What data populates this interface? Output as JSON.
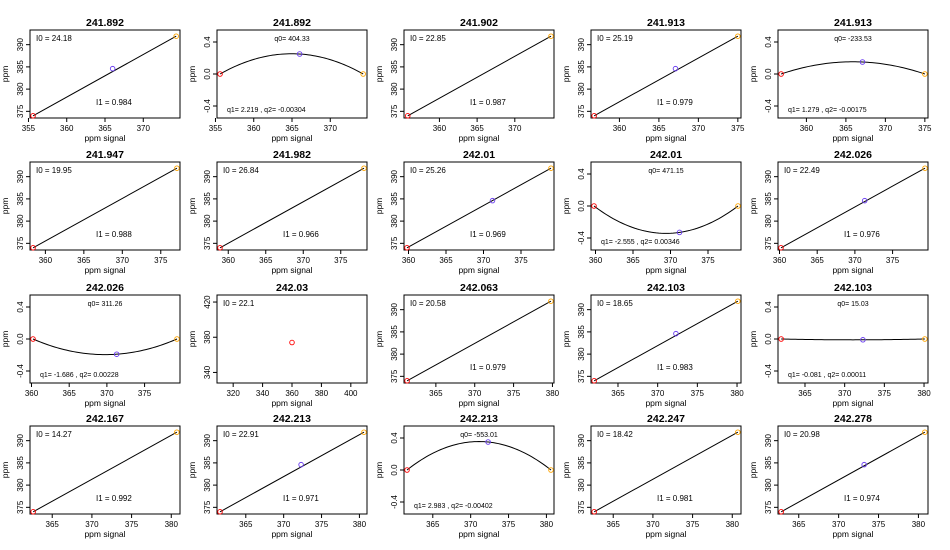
{
  "figure": {
    "y_axis_label": "ppm",
    "x_axis_label": "ppm signal",
    "colors": {
      "first_point": "#ff0000",
      "mid_point": "#6a3df0",
      "last_point": "#ffa500",
      "line": "#000000"
    }
  },
  "chart_data": [
    {
      "title": "241.892",
      "type": "line",
      "kind": "linear",
      "xticks": [
        355,
        360,
        365,
        370
      ],
      "xlim": [
        355.2,
        374.8
      ],
      "yticks": [
        375,
        380,
        385,
        390
      ],
      "ylim": [
        373.5,
        393.3
      ],
      "points": [
        [
          355.6,
          374.0
        ],
        [
          366.0,
          384.6
        ],
        [
          374.3,
          391.9
        ]
      ],
      "ann_top": "I0 = 24.18",
      "ann_bottom": "I1 = 0.984"
    },
    {
      "title": "241.892",
      "type": "line",
      "kind": "quadratic",
      "xticks": [
        355,
        360,
        365,
        370
      ],
      "xlim": [
        355.2,
        374.8
      ],
      "yticks": [
        -0.4,
        0.0,
        0.4
      ],
      "ylim": [
        -0.55,
        0.55
      ],
      "points": [
        [
          355.6,
          0.0
        ],
        [
          366.0,
          0.25
        ],
        [
          374.3,
          0.0
        ]
      ],
      "ann_top": "q0= 404.33",
      "ann_bottom": "q1= 2.219 , q2= -0.00304"
    },
    {
      "title": "241.902",
      "type": "line",
      "kind": "linear",
      "xticks": [
        360,
        365,
        370
      ],
      "xlim": [
        355.3,
        375.2
      ],
      "yticks": [
        375,
        380,
        385,
        390
      ],
      "ylim": [
        373.5,
        393.3
      ],
      "points": [
        [
          355.8,
          374.0
        ],
        [
          374.8,
          391.9
        ]
      ],
      "ann_top": "I0 = 22.85",
      "ann_bottom": "I1 = 0.987"
    },
    {
      "title": "241.913",
      "type": "line",
      "kind": "linear",
      "xticks": [
        360,
        365,
        370,
        375
      ],
      "xlim": [
        356.4,
        375.4
      ],
      "yticks": [
        375,
        380,
        385,
        390
      ],
      "ylim": [
        373.5,
        393.3
      ],
      "points": [
        [
          356.8,
          374.0
        ],
        [
          367.1,
          384.6
        ],
        [
          375.0,
          391.9
        ]
      ],
      "ann_top": "I0 = 25.19",
      "ann_bottom": "I1 = 0.979"
    },
    {
      "title": "241.913",
      "type": "line",
      "kind": "quadratic",
      "xticks": [
        360,
        365,
        370,
        375
      ],
      "xlim": [
        356.4,
        375.4
      ],
      "yticks": [
        -0.4,
        0.0,
        0.4
      ],
      "ylim": [
        -0.55,
        0.55
      ],
      "points": [
        [
          356.8,
          0.0
        ],
        [
          367.1,
          0.15
        ],
        [
          375.0,
          0.0
        ]
      ],
      "ann_top": "q0= -233.53",
      "ann_bottom": "q1= 1.279 , q2= -0.00175"
    },
    {
      "title": "241.947",
      "type": "line",
      "kind": "linear",
      "xticks": [
        360,
        365,
        370,
        375
      ],
      "xlim": [
        358.0,
        377.5
      ],
      "yticks": [
        375,
        380,
        385,
        390
      ],
      "ylim": [
        373.5,
        393.3
      ],
      "points": [
        [
          358.4,
          374.0
        ],
        [
          377.1,
          391.9
        ]
      ],
      "ann_top": "I0 = 19.95",
      "ann_bottom": "I1 = 0.988"
    },
    {
      "title": "241.982",
      "type": "line",
      "kind": "linear",
      "xticks": [
        360,
        365,
        370,
        375
      ],
      "xlim": [
        358.5,
        378.5
      ],
      "yticks": [
        375,
        380,
        385,
        390
      ],
      "ylim": [
        373.5,
        393.3
      ],
      "points": [
        [
          358.9,
          374.0
        ],
        [
          378.1,
          391.9
        ]
      ],
      "ann_top": "I0 = 26.84",
      "ann_bottom": "I1 = 0.966"
    },
    {
      "title": "242.01",
      "type": "line",
      "kind": "linear",
      "xticks": [
        360,
        365,
        370,
        375
      ],
      "xlim": [
        359.4,
        379.4
      ],
      "yticks": [
        375,
        380,
        385,
        390
      ],
      "ylim": [
        373.5,
        393.3
      ],
      "points": [
        [
          359.8,
          374.0
        ],
        [
          371.2,
          384.6
        ],
        [
          379.0,
          391.9
        ]
      ],
      "ann_top": "I0 = 25.26",
      "ann_bottom": "I1 = 0.969"
    },
    {
      "title": "242.01",
      "type": "line",
      "kind": "quadratic",
      "xticks": [
        360,
        365,
        370,
        375
      ],
      "xlim": [
        359.4,
        379.4
      ],
      "yticks": [
        -0.4,
        0.0,
        0.4
      ],
      "ylim": [
        -0.55,
        0.55
      ],
      "points": [
        [
          359.8,
          0.0
        ],
        [
          371.2,
          -0.33
        ],
        [
          379.0,
          0.0
        ]
      ],
      "ann_top": "q0= 471.15",
      "ann_bottom": "q1= -2.555 , q2= 0.00346"
    },
    {
      "title": "242.026",
      "type": "line",
      "kind": "linear",
      "xticks": [
        360,
        365,
        370,
        375
      ],
      "xlim": [
        359.8,
        379.7
      ],
      "yticks": [
        375,
        380,
        385,
        390
      ],
      "ylim": [
        373.5,
        393.3
      ],
      "points": [
        [
          360.2,
          374.0
        ],
        [
          371.3,
          384.6
        ],
        [
          379.3,
          391.9
        ]
      ],
      "ann_top": "I0 = 22.49",
      "ann_bottom": "I1 = 0.976"
    },
    {
      "title": "242.026",
      "type": "line",
      "kind": "quadratic",
      "xticks": [
        360,
        365,
        370,
        375
      ],
      "xlim": [
        359.8,
        379.7
      ],
      "yticks": [
        -0.4,
        0.0,
        0.4
      ],
      "ylim": [
        -0.55,
        0.55
      ],
      "points": [
        [
          360.2,
          0.0
        ],
        [
          371.3,
          -0.19
        ],
        [
          379.3,
          0.0
        ]
      ],
      "ann_top": "q0= 311.26",
      "ann_bottom": "q1= -1.686 , q2= 0.00228"
    },
    {
      "title": "242.03",
      "type": "scatter",
      "kind": "single",
      "xticks": [
        320,
        340,
        360,
        380,
        400
      ],
      "xlim": [
        309,
        411
      ],
      "yticks": [
        340,
        380,
        420
      ],
      "ylim": [
        328,
        428
      ],
      "points": [
        [
          360.0,
          374.0
        ]
      ],
      "ann_top": "I0 = 22.1",
      "ann_bottom": ""
    },
    {
      "title": "242.063",
      "type": "line",
      "kind": "linear",
      "xticks": [
        365,
        370,
        375,
        380
      ],
      "xlim": [
        360.9,
        380.2
      ],
      "yticks": [
        375,
        380,
        385,
        390
      ],
      "ylim": [
        373.5,
        393.3
      ],
      "points": [
        [
          361.3,
          374.0
        ],
        [
          379.8,
          391.9
        ]
      ],
      "ann_top": "I0 = 20.58",
      "ann_bottom": "I1 = 0.979"
    },
    {
      "title": "242.103",
      "type": "line",
      "kind": "linear",
      "xticks": [
        365,
        370,
        375,
        380
      ],
      "xlim": [
        361.6,
        380.5
      ],
      "yticks": [
        375,
        380,
        385,
        390
      ],
      "ylim": [
        373.5,
        393.3
      ],
      "points": [
        [
          362.0,
          374.0
        ],
        [
          372.3,
          384.6
        ],
        [
          380.1,
          391.9
        ]
      ],
      "ann_top": "I0 = 18.65",
      "ann_bottom": "I1 = 0.983"
    },
    {
      "title": "242.103",
      "type": "line",
      "kind": "quadratic",
      "xticks": [
        365,
        370,
        375,
        380
      ],
      "xlim": [
        361.6,
        380.5
      ],
      "yticks": [
        -0.4,
        0.0,
        0.4
      ],
      "ylim": [
        -0.55,
        0.55
      ],
      "points": [
        [
          362.0,
          0.0
        ],
        [
          372.3,
          -0.01
        ],
        [
          380.1,
          0.0
        ]
      ],
      "ann_top": "q0= 15.03",
      "ann_bottom": "q1= -0.081 , q2= 0.00011"
    },
    {
      "title": "242.167",
      "type": "line",
      "kind": "linear",
      "xticks": [
        365,
        370,
        375,
        380
      ],
      "xlim": [
        362.2,
        381.1
      ],
      "yticks": [
        375,
        380,
        385,
        390
      ],
      "ylim": [
        373.5,
        393.3
      ],
      "points": [
        [
          362.6,
          374.0
        ],
        [
          380.7,
          391.9
        ]
      ],
      "ann_top": "I0 = 14.27",
      "ann_bottom": "I1 = 0.992"
    },
    {
      "title": "242.213",
      "type": "line",
      "kind": "linear",
      "xticks": [
        365,
        370,
        375,
        380
      ],
      "xlim": [
        361.2,
        381.0
      ],
      "yticks": [
        375,
        380,
        385,
        390
      ],
      "ylim": [
        373.5,
        393.3
      ],
      "points": [
        [
          361.6,
          374.0
        ],
        [
          372.3,
          384.6
        ],
        [
          380.6,
          391.9
        ]
      ],
      "ann_top": "I0 = 22.91",
      "ann_bottom": "I1 = 0.971"
    },
    {
      "title": "242.213",
      "type": "line",
      "kind": "quadratic",
      "xticks": [
        365,
        370,
        375,
        380
      ],
      "xlim": [
        361.2,
        381.0
      ],
      "yticks": [
        -0.4,
        0.0,
        0.4
      ],
      "ylim": [
        -0.55,
        0.55
      ],
      "points": [
        [
          361.6,
          0.0
        ],
        [
          372.3,
          0.35
        ],
        [
          380.6,
          0.0
        ]
      ],
      "ann_top": "q0= -553.01",
      "ann_bottom": "q1= 2.983 , q2= -0.00402"
    },
    {
      "title": "242.247",
      "type": "line",
      "kind": "linear",
      "xticks": [
        365,
        370,
        375,
        380
      ],
      "xlim": [
        362.2,
        381.1
      ],
      "yticks": [
        375,
        380,
        385,
        390
      ],
      "ylim": [
        373.5,
        393.3
      ],
      "points": [
        [
          362.6,
          374.0
        ],
        [
          380.7,
          391.9
        ]
      ],
      "ann_top": "I0 = 18.42",
      "ann_bottom": "I1 = 0.981"
    },
    {
      "title": "242.278",
      "type": "line",
      "kind": "linear",
      "xticks": [
        365,
        370,
        375,
        380
      ],
      "xlim": [
        362.4,
        381.2
      ],
      "yticks": [
        375,
        380,
        385,
        390
      ],
      "ylim": [
        373.5,
        393.3
      ],
      "points": [
        [
          362.8,
          374.0
        ],
        [
          373.2,
          384.6
        ],
        [
          380.8,
          391.9
        ]
      ],
      "ann_top": "I0 = 20.98",
      "ann_bottom": "I1 = 0.974"
    }
  ]
}
